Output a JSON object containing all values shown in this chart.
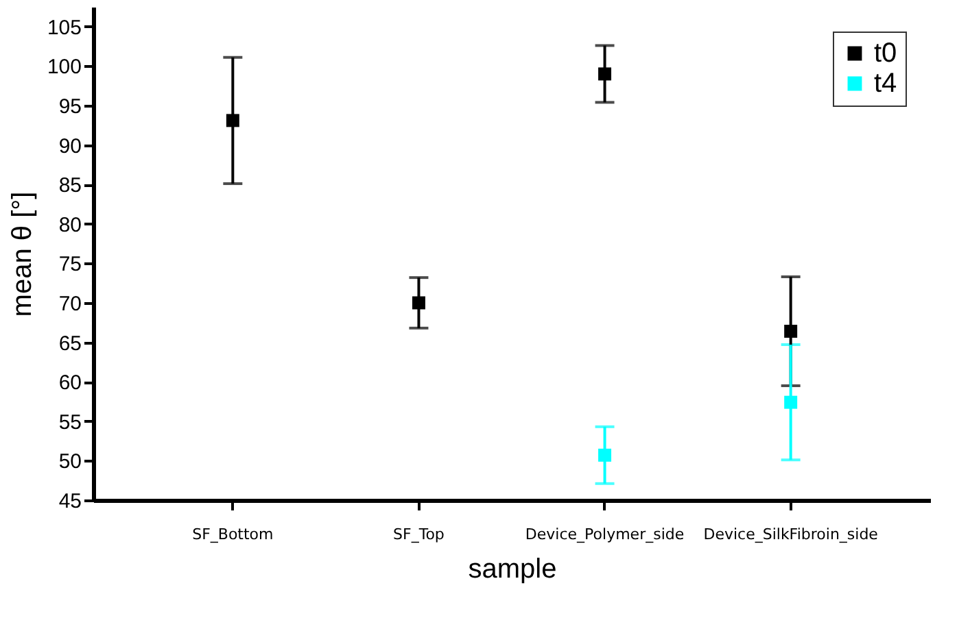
{
  "chart_data": {
    "type": "scatter",
    "xlabel": "sample",
    "ylabel": "mean θ [°]",
    "categories": [
      "SF_Bottom",
      "SF_Top",
      "Device_Polymer_side",
      "Device_SilkFibroin_side"
    ],
    "series": [
      {
        "name": "t0",
        "color": "#000000",
        "values": [
          93.1,
          70.0,
          99.0,
          66.4
        ],
        "errors": [
          8.0,
          3.2,
          3.6,
          6.9
        ]
      },
      {
        "name": "t4",
        "color": "#00ffff",
        "values": [
          null,
          null,
          50.7,
          57.4
        ],
        "errors": [
          null,
          null,
          3.6,
          7.3
        ]
      }
    ],
    "ylim": [
      45,
      107.5
    ],
    "yticks": [
      45,
      50,
      55,
      60,
      65,
      70,
      75,
      80,
      85,
      90,
      95,
      100,
      105
    ],
    "marker": "square",
    "grid": false,
    "legend": "top right"
  }
}
